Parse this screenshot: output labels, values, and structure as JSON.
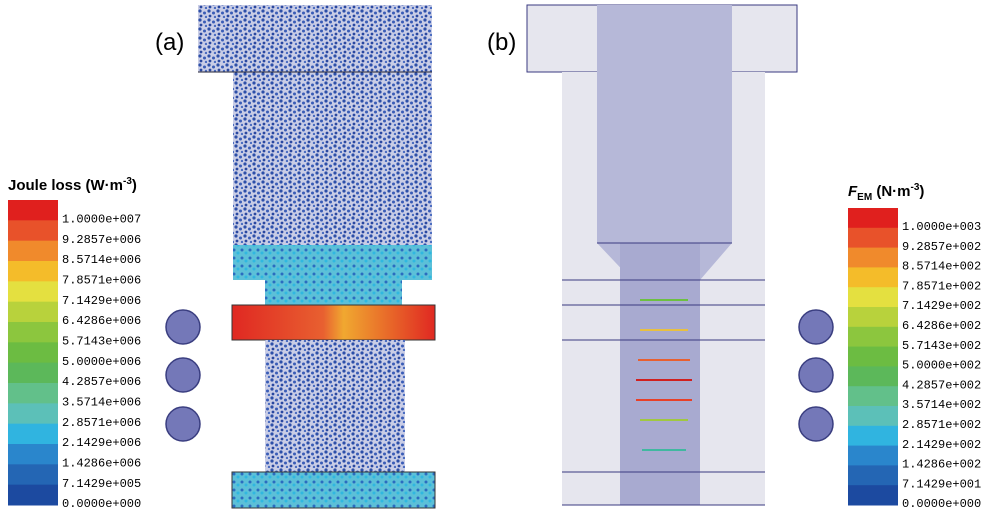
{
  "panels": [
    {
      "label": "(a)",
      "legend": {
        "title": [
          "Joule loss (W·m",
          "-3",
          ")"
        ],
        "labels": [
          "1.0000e+007",
          "9.2857e+006",
          "8.5714e+006",
          "7.8571e+006",
          "7.1429e+006",
          "6.4286e+006",
          "5.7143e+006",
          "5.0000e+006",
          "4.2857e+006",
          "3.5714e+006",
          "2.8571e+006",
          "2.1429e+006",
          "1.4286e+006",
          "7.1429e+005",
          "0.0000e+000"
        ]
      }
    },
    {
      "label": "(b)",
      "legend": {
        "title": [
          "F",
          "EM",
          " (N·m",
          "-3",
          ")"
        ],
        "labels": [
          "1.0000e+003",
          "9.2857e+002",
          "8.5714e+002",
          "7.8571e+002",
          "7.1429e+002",
          "6.4286e+002",
          "5.7143e+002",
          "5.0000e+002",
          "4.2857e+002",
          "3.5714e+002",
          "2.8571e+002",
          "2.1429e+002",
          "1.4286e+002",
          "7.1429e+001",
          "0.0000e+000"
        ]
      }
    }
  ]
}
